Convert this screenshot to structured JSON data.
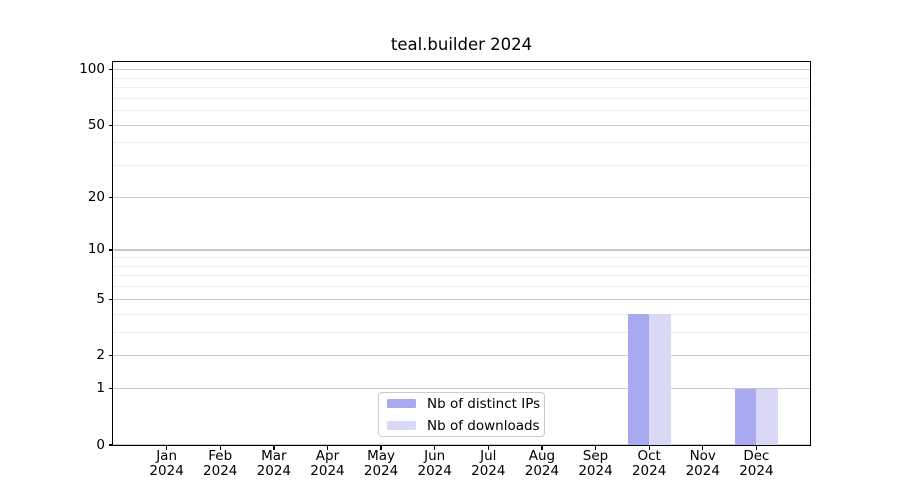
{
  "chart_data": {
    "type": "bar",
    "title": "teal.builder 2024",
    "categories": [
      "Jan",
      "Feb",
      "Mar",
      "Apr",
      "May",
      "Jun",
      "Jul",
      "Aug",
      "Sep",
      "Oct",
      "Nov",
      "Dec"
    ],
    "x_tick_year": "2024",
    "series": [
      {
        "name": "Nb of distinct IPs",
        "color": "#a9a9f0",
        "values": [
          0,
          0,
          0,
          0,
          0,
          0,
          0,
          0,
          0,
          4,
          0,
          1
        ]
      },
      {
        "name": "Nb of downloads",
        "color": "#d9d9f7",
        "values": [
          0,
          0,
          0,
          0,
          0,
          0,
          0,
          0,
          0,
          4,
          0,
          1
        ]
      }
    ],
    "xlabel": "",
    "ylabel": "",
    "yscale": "log1p",
    "ylim": [
      0,
      110
    ],
    "yticks_major": [
      0,
      1,
      2,
      5,
      10,
      20,
      50,
      100
    ],
    "ytick_labels": [
      "0",
      "1",
      "2",
      "5",
      "10",
      "20",
      "50",
      "100"
    ],
    "yticks_minor": [
      3,
      4,
      6,
      7,
      8,
      9,
      30,
      40,
      60,
      70,
      80,
      90
    ],
    "grid": true,
    "legend_position": "lower center",
    "bar_width_fraction": 0.4
  },
  "legend": {
    "items": [
      {
        "label": "Nb of distinct IPs",
        "color": "#a9a9f0"
      },
      {
        "label": "Nb of downloads",
        "color": "#d9d9f7"
      }
    ]
  },
  "colors": {
    "major_grid": "#c9c9c9",
    "minor_grid": "#ececec",
    "axis": "#000000",
    "background": "#ffffff"
  }
}
